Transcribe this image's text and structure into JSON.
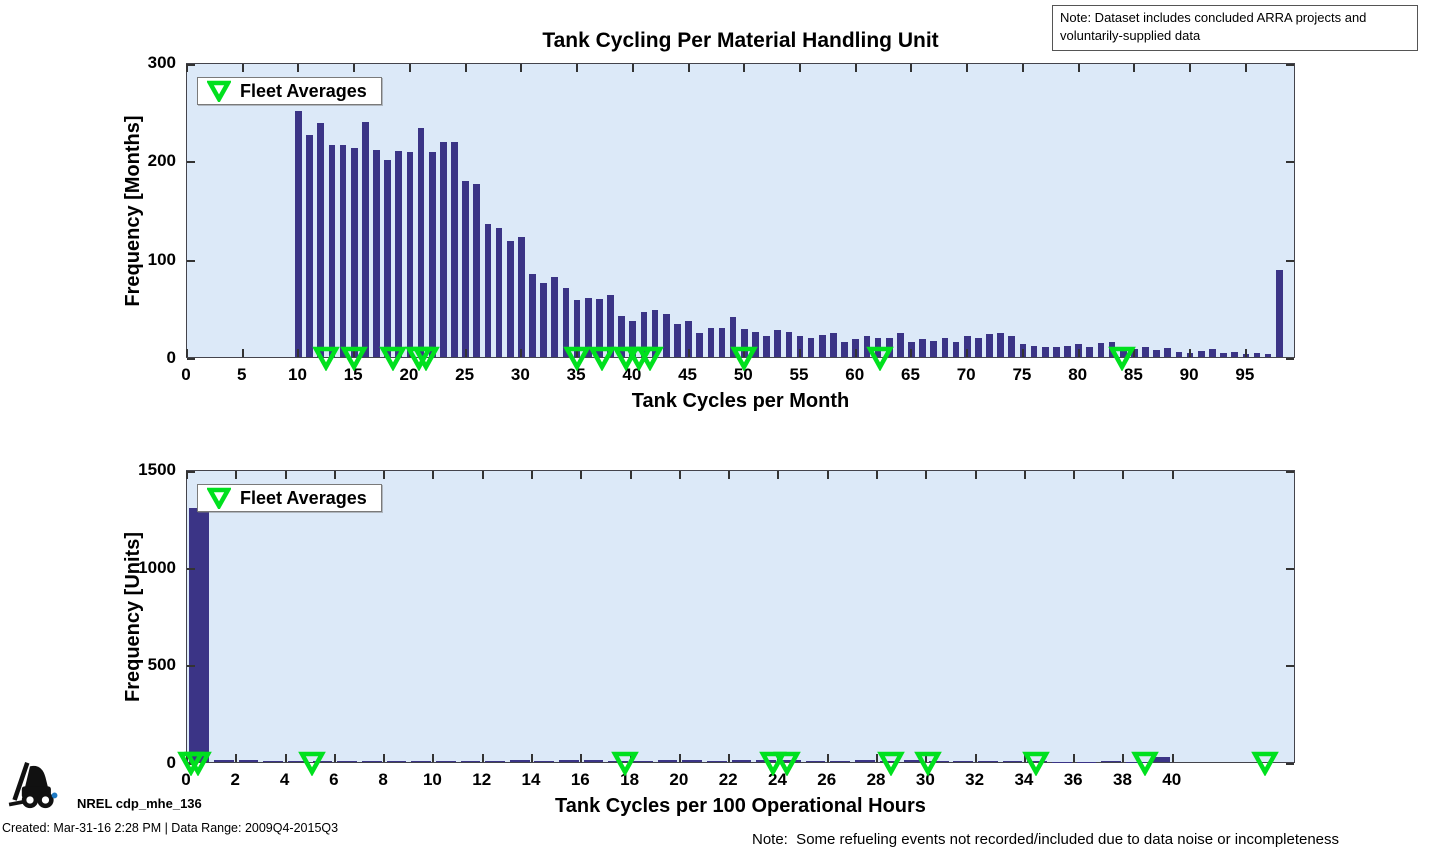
{
  "figure": {
    "note_top_right": "Note: Dataset includes concluded ARRA projects and voluntarily-supplied data",
    "note_bottom_right": "Note:  Some refueling events not recorded/included due to data noise or incompleteness",
    "footer": {
      "logo_icon": "forklift-icon",
      "label": "NREL cdp_mhe_136",
      "created": "Created: Mar-31-16 2:28 PM | Data Range: 2009Q4-2015Q3"
    },
    "colors": {
      "bar": "#3b3486",
      "plot_background": "#dce9f8",
      "fleet_marker_green": "#00e01e",
      "axis": "#333333"
    }
  },
  "chart_data": [
    {
      "type": "bar",
      "title": "Tank Cycling Per Material Handling Unit",
      "xlabel": "Tank Cycles per Month",
      "ylabel": "Frequency [Months]",
      "xlim": [
        0,
        99.5
      ],
      "ylim": [
        0,
        300
      ],
      "xticks": [
        0,
        5,
        10,
        15,
        20,
        25,
        30,
        35,
        40,
        45,
        50,
        55,
        60,
        65,
        70,
        75,
        80,
        85,
        90,
        95
      ],
      "yticks": [
        0,
        100,
        200,
        300
      ],
      "grid": false,
      "legend": {
        "label": "Fleet Averages",
        "marker": "green-triangle-down-icon",
        "position": "top-left"
      },
      "bar_width": 0.6,
      "x": [
        10,
        11,
        12,
        13,
        14,
        15,
        16,
        17,
        18,
        19,
        20,
        21,
        22,
        23,
        24,
        25,
        26,
        27,
        28,
        29,
        30,
        31,
        32,
        33,
        34,
        35,
        36,
        37,
        38,
        39,
        40,
        41,
        42,
        43,
        44,
        45,
        46,
        47,
        48,
        49,
        50,
        51,
        52,
        53,
        54,
        55,
        56,
        57,
        58,
        59,
        60,
        61,
        62,
        63,
        64,
        65,
        66,
        67,
        68,
        69,
        70,
        71,
        72,
        73,
        74,
        75,
        76,
        77,
        78,
        79,
        80,
        81,
        82,
        83,
        84,
        85,
        86,
        87,
        88,
        89,
        90,
        91,
        92,
        93,
        94,
        95,
        96,
        97,
        98
      ],
      "values": [
        250,
        226,
        238,
        216,
        216,
        213,
        239,
        211,
        200,
        210,
        208,
        233,
        208,
        219,
        219,
        179,
        176,
        135,
        131,
        118,
        122,
        84,
        75,
        81,
        70,
        58,
        60,
        59,
        63,
        42,
        37,
        46,
        48,
        44,
        34,
        37,
        24,
        30,
        29,
        41,
        28,
        25,
        21,
        27,
        25,
        21,
        19,
        22,
        24,
        15,
        18,
        21,
        19,
        19,
        24,
        15,
        18,
        16,
        19,
        15,
        21,
        19,
        23,
        24,
        21,
        13,
        11,
        10,
        10,
        11,
        13,
        10,
        14,
        15,
        8,
        8,
        10,
        7,
        9,
        5,
        4,
        6,
        8,
        4,
        5,
        3,
        4,
        3,
        88
      ],
      "fleet_averages": [
        12.6,
        15.1,
        18.6,
        20.9,
        21.5,
        35.1,
        37.3,
        39.5,
        40.6,
        41.6,
        50.1,
        62.3,
        84.0
      ]
    },
    {
      "type": "bar",
      "title": "",
      "xlabel": "Tank Cycles per 100 Operational Hours",
      "ylabel": "Frequency [Units]",
      "xlim": [
        0,
        45
      ],
      "ylim": [
        0,
        1500
      ],
      "xticks": [
        0,
        2,
        4,
        6,
        8,
        10,
        12,
        14,
        16,
        18,
        20,
        22,
        24,
        26,
        28,
        30,
        32,
        34,
        36,
        38,
        40
      ],
      "yticks": [
        0,
        500,
        1000,
        1500
      ],
      "grid": false,
      "legend": {
        "label": "Fleet Averages",
        "marker": "green-triangle-down-icon",
        "position": "top-left"
      },
      "bar_width": 0.8,
      "x": [
        0.5,
        1.5,
        2.5,
        3.5,
        4.5,
        5.5,
        6.5,
        7.5,
        8.5,
        9.5,
        10.5,
        11.5,
        12.5,
        13.5,
        14.5,
        15.5,
        16.5,
        17.5,
        18.5,
        19.5,
        20.5,
        21.5,
        22.5,
        23.5,
        24.5,
        25.5,
        26.5,
        27.5,
        28.5,
        29.5,
        30.5,
        31.5,
        32.5,
        33.5,
        34.5,
        35.5,
        36.5,
        37.5,
        38.5,
        39.5
      ],
      "values": [
        1300,
        12,
        9,
        3,
        4,
        3,
        3,
        3,
        3,
        3,
        3,
        3,
        3,
        8,
        7,
        8,
        8,
        5,
        4,
        9,
        8,
        5,
        11,
        10,
        8,
        7,
        5,
        9,
        7,
        8,
        5,
        7,
        4,
        5,
        3,
        2,
        2,
        3,
        2,
        28
      ],
      "fleet_averages": [
        0.2,
        0.5,
        5.1,
        17.8,
        23.8,
        24.4,
        28.6,
        30.1,
        34.5,
        38.9,
        43.8
      ]
    }
  ]
}
